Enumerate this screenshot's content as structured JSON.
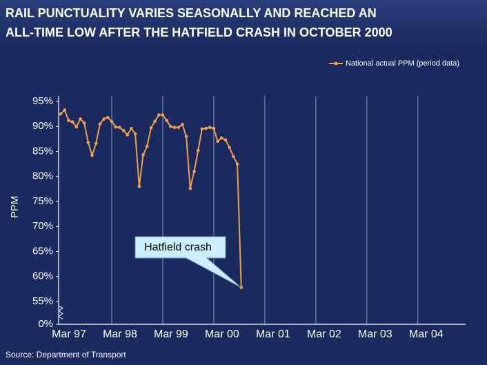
{
  "chart_data": {
    "type": "line",
    "title": [
      "RAIL PUNCTUALITY VARIES SEASONALLY AND REACHED AN",
      "ALL-TIME LOW AFTER THE HATFIELD CRASH IN OCTOBER 2000"
    ],
    "ylabel": "PPM",
    "source": "Source: Department of Transport",
    "annotation": "Hatfield crash",
    "legend": "top-right",
    "axis_break": true,
    "grid": true,
    "categories": [
      "Mar 97",
      null,
      null,
      null,
      null,
      null,
      null,
      null,
      null,
      null,
      null,
      null,
      null,
      "Mar 98",
      null,
      null,
      null,
      null,
      null,
      null,
      null,
      null,
      null,
      null,
      null,
      null,
      "Mar 99",
      null,
      null,
      null,
      null,
      null,
      null,
      null,
      null,
      null,
      null,
      null,
      null,
      "Mar 00",
      null,
      null,
      null,
      null,
      null,
      null,
      null,
      null,
      null,
      null,
      null,
      null,
      "Mar 01",
      null,
      null,
      null,
      null,
      null,
      null,
      null,
      null,
      null,
      null,
      null,
      null,
      "Mar 02",
      null,
      null,
      null,
      null,
      null,
      null,
      null,
      null,
      null,
      null,
      null,
      null,
      "Mar 03",
      null,
      null,
      null,
      null,
      null,
      null,
      null,
      null,
      null,
      null,
      null,
      null,
      "Mar 04"
    ],
    "series": [
      {
        "name": "National actual PPM (period data)",
        "color": "#f0a050",
        "values": [
          92.5,
          93.3,
          91.2,
          90.9,
          89.9,
          91.5,
          90.7,
          86.8,
          84.2,
          86.6,
          90.5,
          91.5,
          91.8,
          91.0,
          89.9,
          89.8,
          89.2,
          88.3,
          89.6,
          88.5,
          78.0,
          84.3,
          86.0,
          89.7,
          91.0,
          92.3,
          92.3,
          91.2,
          90.0,
          89.8,
          89.8,
          90.4,
          88.0,
          77.6,
          81.0,
          85.2,
          89.5,
          89.6,
          89.8,
          89.6,
          87.0,
          87.7,
          87.3,
          85.8,
          84.0,
          82.5,
          57.8,
          null,
          null,
          null,
          null,
          null,
          null,
          null,
          null,
          null,
          null,
          null,
          null,
          null,
          null,
          null,
          null,
          null,
          null,
          null,
          null,
          null,
          null,
          null,
          null,
          null,
          null,
          null,
          null,
          null,
          null,
          null,
          null,
          null,
          null,
          null,
          null,
          null,
          null,
          null,
          null,
          null,
          null,
          null,
          null,
          null
        ]
      }
    ],
    "ylim": [
      0,
      95
    ],
    "yticks": [
      {
        "value": 0,
        "label": "0%"
      },
      {
        "value": 55,
        "label": "55%"
      },
      {
        "value": 60,
        "label": "60%"
      },
      {
        "value": 65,
        "label": "65%"
      },
      {
        "value": 70,
        "label": "70%"
      },
      {
        "value": 75,
        "label": "75%"
      },
      {
        "value": 80,
        "label": "80%"
      },
      {
        "value": 85,
        "label": "85%"
      },
      {
        "value": 90,
        "label": "90%"
      },
      {
        "value": 95,
        "label": "95%"
      }
    ]
  }
}
